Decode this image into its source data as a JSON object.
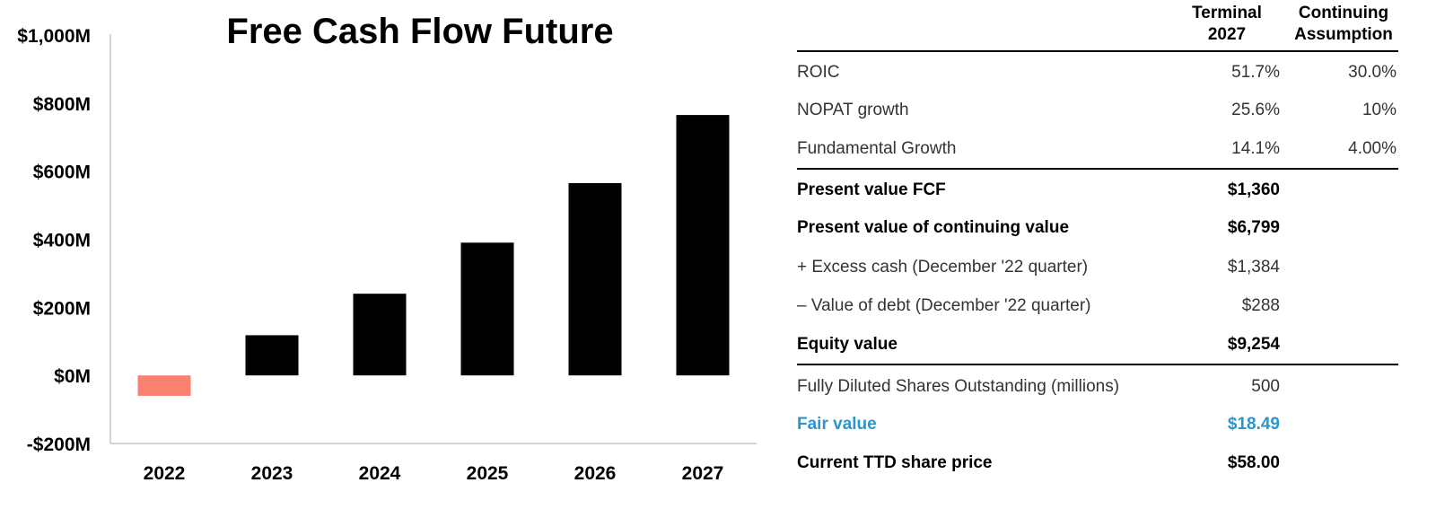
{
  "chart_data": {
    "type": "bar",
    "title": "Free Cash Flow Future",
    "categories": [
      "2022",
      "2023",
      "2024",
      "2025",
      "2026",
      "2027"
    ],
    "values": [
      -60,
      118,
      240,
      390,
      565,
      765
    ],
    "ylim": [
      -200,
      1000
    ],
    "yticks": [
      -200,
      0,
      200,
      400,
      600,
      800,
      1000
    ],
    "ytick_labels": [
      "-$200M",
      "$0M",
      "$200M",
      "$400M",
      "$600M",
      "$800M",
      "$1,000M"
    ],
    "xlabel": "",
    "ylabel": "",
    "grid": false,
    "colors": {
      "negative": "#fa8072",
      "positive": "#000000"
    }
  },
  "table": {
    "headers": {
      "terminal": [
        "Terminal",
        "2027"
      ],
      "continuing": [
        "Continuing",
        "Assumption"
      ]
    },
    "rows": [
      {
        "label": "ROIC",
        "terminal": "51.7%",
        "continuing": "30.0%",
        "style": "light"
      },
      {
        "label": "NOPAT growth",
        "terminal": "25.6%",
        "continuing": "10%",
        "style": "light"
      },
      {
        "label": "Fundamental Growth",
        "terminal": "14.1%",
        "continuing": "4.00%",
        "style": "light"
      },
      {
        "label": "Present value FCF",
        "terminal": "$1,360",
        "continuing": "",
        "style": "bold"
      },
      {
        "label": "Present value of continuing value",
        "terminal": "$6,799",
        "continuing": "",
        "style": "bold"
      },
      {
        "label": "+ Excess cash (December '22 quarter)",
        "terminal": "$1,384",
        "continuing": "",
        "style": "light"
      },
      {
        "label": "– Value of debt (December '22 quarter)",
        "terminal": "$288",
        "continuing": "",
        "style": "light"
      },
      {
        "label": "Equity value",
        "terminal": "$9,254",
        "continuing": "",
        "style": "bold"
      },
      {
        "label": "Fully Diluted Shares Outstanding (millions)",
        "terminal": "500",
        "continuing": "",
        "style": "light"
      },
      {
        "label": "Fair value",
        "terminal": "$18.49",
        "continuing": "",
        "style": "blue"
      },
      {
        "label": "Current TTD share price",
        "terminal": "$58.00",
        "continuing": "",
        "style": "bold"
      }
    ],
    "accent_color": "#2b95cd"
  }
}
